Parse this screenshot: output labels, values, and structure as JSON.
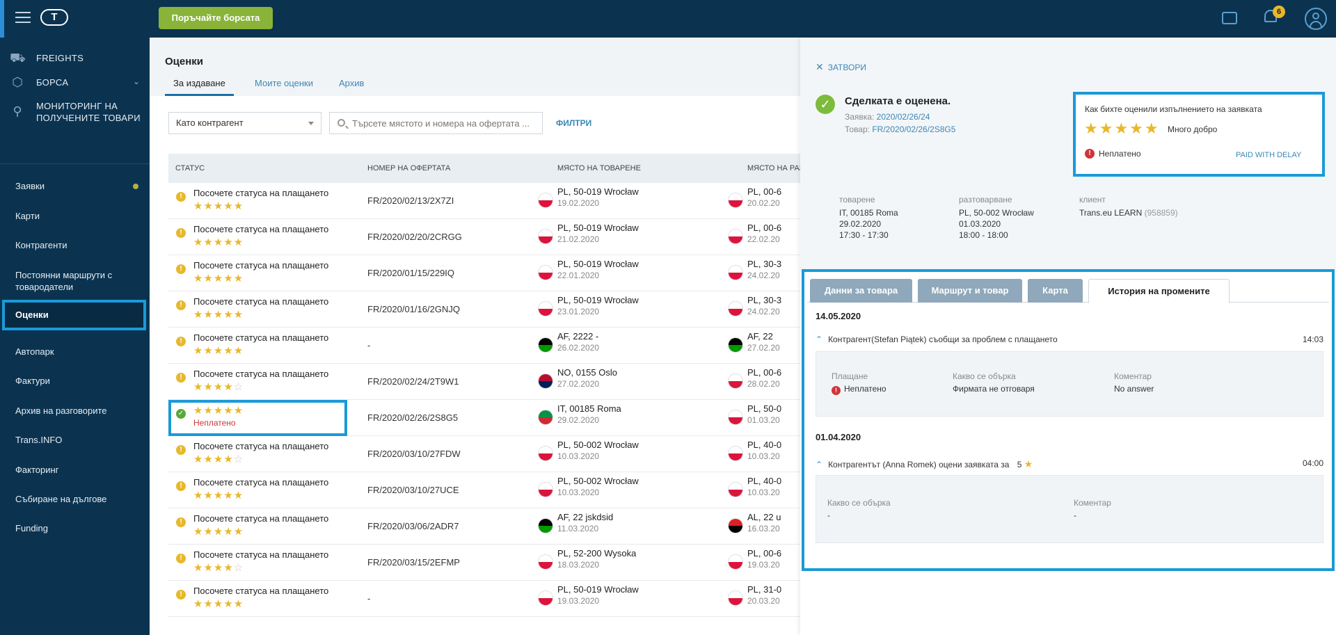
{
  "topbar": {
    "logo": "T",
    "cta_label": "Поръчайте борсата",
    "notifications_count": "6"
  },
  "sidebar": {
    "main_items": [
      {
        "label": "FREIGHTS",
        "icon": "truck-icon"
      },
      {
        "label": "БОРСА",
        "icon": "box-icon"
      },
      {
        "label": "МОНИТОРИНГ НА ПОЛУЧЕНИТЕ ТОВАРИ",
        "icon": "satellite-icon"
      }
    ],
    "items": [
      {
        "label": "Заявки"
      },
      {
        "label": "Карти"
      },
      {
        "label": "Контрагенти"
      },
      {
        "label": "Постоянни маршрути с товародатели"
      },
      {
        "label": "Оценки"
      },
      {
        "label": "Автопарк"
      },
      {
        "label": "Фактури"
      },
      {
        "label": "Архив на разговорите"
      },
      {
        "label": "Trans.INFO"
      },
      {
        "label": "Факторинг"
      },
      {
        "label": "Събиране на дългове"
      },
      {
        "label": "Funding"
      }
    ]
  },
  "main": {
    "title": "Оценки",
    "tabs": [
      {
        "label": "За издаване"
      },
      {
        "label": "Моите оценки"
      },
      {
        "label": "Архив"
      }
    ],
    "select_value": "Като контрагент",
    "search_placeholder": "Търсете мястото и номера на офертата ...",
    "filters_label": "ФИЛТРИ",
    "columns": [
      "СТАТУС",
      "НОМЕР НА ОФЕРТАТА",
      "МЯСТО НА ТОВАРЕНЕ",
      "МЯСТО НА РАЗТ"
    ],
    "rows": [
      {
        "status": "Посочете статуса на плащането",
        "stars": "★★★★★",
        "stars_off": "",
        "offer": "FR/2020/02/13/2X7ZI",
        "load": "PL, 50-019 Wrocław",
        "load_date": "19.02.2020",
        "unload": "PL, 00-6",
        "unload_date": "20.02.20"
      },
      {
        "status": "Посочете статуса на плащането",
        "stars": "★★★★★",
        "stars_off": "",
        "offer": "FR/2020/02/20/2CRGG",
        "load": "PL, 50-019 Wrocław",
        "load_date": "21.02.2020",
        "unload": "PL, 00-6",
        "unload_date": "22.02.20"
      },
      {
        "status": "Посочете статуса на плащането",
        "stars": "★★★★★",
        "stars_off": "",
        "offer": "FR/2020/01/15/229IQ",
        "load": "PL, 50-019 Wrocław",
        "load_date": "22.01.2020",
        "unload": "PL, 30-3",
        "unload_date": "24.02.20"
      },
      {
        "status": "Посочете статуса на плащането",
        "stars": "★★★★★",
        "stars_off": "",
        "offer": "FR/2020/01/16/2GNJQ",
        "load": "PL, 50-019 Wrocław",
        "load_date": "23.01.2020",
        "unload": "PL, 30-3",
        "unload_date": "24.02.20"
      },
      {
        "status": "Посочете статуса на плащането",
        "stars": "★★★★★",
        "stars_off": "",
        "offer": "-",
        "load": "AF, 2222 -",
        "load_date": "26.02.2020",
        "unload": "AF, 22",
        "unload_date": "27.02.20"
      },
      {
        "status": "Посочете статуса на плащането",
        "stars": "★★★★",
        "stars_off": "☆",
        "offer": "FR/2020/02/24/2T9W1",
        "load": "NO, 0155 Oslo",
        "load_date": "27.02.2020",
        "unload": "PL, 00-6",
        "unload_date": "28.02.20"
      },
      {
        "status": "",
        "stars": "★★★★★",
        "stars_off": "",
        "unpaid": "Неплатено",
        "offer": "FR/2020/02/26/2S8G5",
        "load": "IT, 00185 Roma",
        "load_date": "29.02.2020",
        "unload": "PL, 50-0",
        "unload_date": "01.03.20"
      },
      {
        "status": "Посочете статуса на плащането",
        "stars": "★★★★",
        "stars_off": "☆",
        "offer": "FR/2020/03/10/27FDW",
        "load": "PL, 50-002 Wrocław",
        "load_date": "10.03.2020",
        "unload": "PL, 40-0",
        "unload_date": "10.03.20"
      },
      {
        "status": "Посочете статуса на плащането",
        "stars": "★★★★★",
        "stars_off": "",
        "offer": "FR/2020/03/10/27UCE",
        "load": "PL, 50-002 Wrocław",
        "load_date": "10.03.2020",
        "unload": "PL, 40-0",
        "unload_date": "10.03.20"
      },
      {
        "status": "Посочете статуса на плащането",
        "stars": "★★★★★",
        "stars_off": "",
        "offer": "FR/2020/03/06/2ADR7",
        "load": "AF, 22 jskdsid",
        "load_date": "11.03.2020",
        "unload": "AL, 22 u",
        "unload_date": "16.03.20"
      },
      {
        "status": "Посочете статуса на плащането",
        "stars": "★★★★",
        "stars_off": "☆",
        "offer": "FR/2020/03/15/2EFMP",
        "load": "PL, 52-200 Wysoka",
        "load_date": "18.03.2020",
        "unload": "PL, 00-6",
        "unload_date": "19.03.20"
      },
      {
        "status": "Посочете статуса на плащането",
        "stars": "★★★★★",
        "stars_off": "",
        "offer": "-",
        "load": "PL, 50-019 Wrocław",
        "load_date": "19.03.2020",
        "unload": "PL, 31-0",
        "unload_date": "20.03.20"
      }
    ]
  },
  "panel": {
    "close_label": "ЗАТВОРИ",
    "title": "Сделката е оценена.",
    "order_label": "Заявка:",
    "order_value": "2020/02/26/24",
    "cargo_label": "Товар:",
    "cargo_value": "FR/2020/02/26/2S8G5",
    "rating": {
      "question": "Как бихте оценили изпълнението на заявката",
      "stars": "★★★★★",
      "label": "Много добро",
      "unpaid": "Неплатено",
      "paid_with_delay": "PAID WITH DELAY"
    },
    "loading": {
      "label": "товарене",
      "place": "IT, 00185 Roma",
      "date": "29.02.2020",
      "time": "17:30 - 17:30"
    },
    "unloading": {
      "label": "разтоварване",
      "place": "PL, 50-002 Wrocław",
      "date": "01.03.2020",
      "time": "18:00 - 18:00"
    },
    "client": {
      "label": "клиент",
      "name": "Trans.eu LEARN",
      "id": "(958859)"
    },
    "tabs": [
      {
        "label": "Данни за товара"
      },
      {
        "label": "Маршрут и товар"
      },
      {
        "label": "Карта"
      },
      {
        "label": "История на промените"
      }
    ],
    "history": [
      {
        "date": "14.05.2020",
        "text": "Контрагент(Stefan Piątek) съобщи за проблем с плащането",
        "time": "14:03",
        "details": [
          {
            "label": "Плащане",
            "value": "Неплатено"
          },
          {
            "label": "Какво се обърка",
            "value": "Фирмата не отговаря"
          },
          {
            "label": "Коментар",
            "value": "No answer"
          }
        ]
      },
      {
        "date": "01.04.2020",
        "text": "Контрагентът (Anna Romek) оцени заявката за",
        "score": "5",
        "time": "04:00",
        "details": [
          {
            "label": "Какво се обърка",
            "value": "-"
          },
          {
            "label": "Коментар",
            "value": "-"
          }
        ]
      }
    ]
  },
  "colors": {
    "navy": "#0b3350",
    "accent_blue": "#1a9ad8",
    "cta_green": "#8ab33a",
    "star_yellow": "#e8b82b",
    "unpaid_red": "#d0343a"
  },
  "flags": {
    "PL": [
      "#ffffff",
      "#dc143c"
    ],
    "AF": [
      "#000000",
      "#009900"
    ],
    "NO": [
      "#ba0c2f",
      "#00205b"
    ],
    "IT": [
      "#009246",
      "#ce2b37"
    ],
    "AL": [
      "#e41e20",
      "#000000"
    ]
  }
}
